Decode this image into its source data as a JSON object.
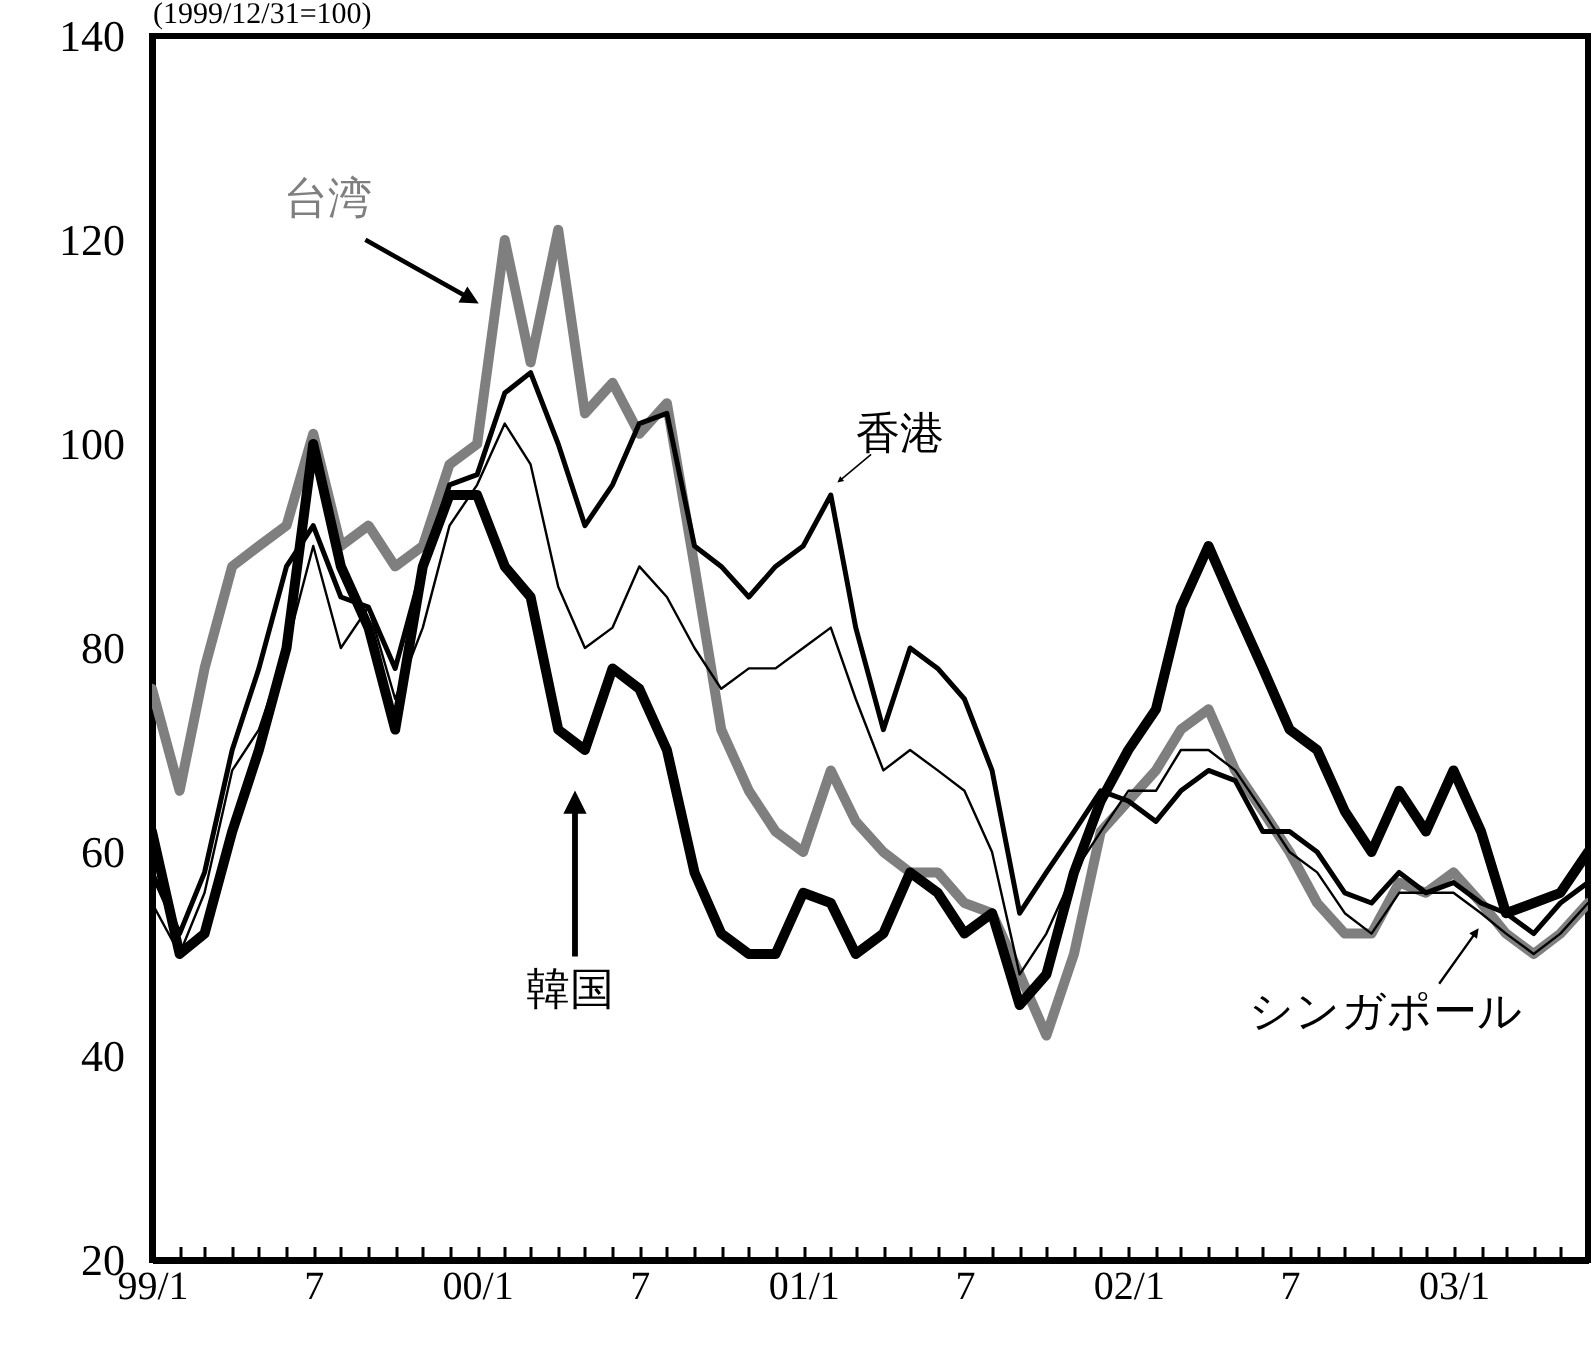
{
  "chart_data": {
    "type": "line",
    "ylabel": "(1999/12/31=100)",
    "x": [
      "1999-01",
      "1999-02",
      "1999-03",
      "1999-04",
      "1999-05",
      "1999-06",
      "1999-07",
      "1999-08",
      "1999-09",
      "1999-10",
      "1999-11",
      "1999-12",
      "2000-01",
      "2000-02",
      "2000-03",
      "2000-04",
      "2000-05",
      "2000-06",
      "2000-07",
      "2000-08",
      "2000-09",
      "2000-10",
      "2000-11",
      "2000-12",
      "2001-01",
      "2001-02",
      "2001-03",
      "2001-04",
      "2001-05",
      "2001-06",
      "2001-07",
      "2001-08",
      "2001-09",
      "2001-10",
      "2001-11",
      "2001-12",
      "2002-01",
      "2002-02",
      "2002-03",
      "2002-04",
      "2002-05",
      "2002-06",
      "2002-07",
      "2002-08",
      "2002-09",
      "2002-10",
      "2002-11",
      "2002-12",
      "2003-01",
      "2003-02",
      "2003-03",
      "2003-04",
      "2003-05",
      "2003-06"
    ],
    "series": [
      {
        "name": "台湾",
        "color": "#7f7f7f",
        "values": [
          76,
          66,
          78,
          88,
          90,
          92,
          101,
          90,
          92,
          88,
          90,
          98,
          100,
          120,
          108,
          121,
          103,
          106,
          101,
          104,
          88,
          72,
          66,
          62,
          60,
          68,
          63,
          60,
          58,
          58,
          55,
          54,
          48,
          42,
          50,
          62,
          65,
          68,
          72,
          74,
          68,
          64,
          60,
          55,
          52,
          52,
          57,
          56,
          58,
          55,
          52,
          50,
          52,
          55
        ]
      },
      {
        "name": "香港",
        "color": "#000000",
        "values": [
          58,
          52,
          58,
          70,
          78,
          88,
          92,
          85,
          84,
          78,
          88,
          96,
          97,
          105,
          107,
          100,
          92,
          96,
          102,
          103,
          90,
          88,
          85,
          88,
          90,
          95,
          82,
          72,
          80,
          78,
          75,
          68,
          54,
          58,
          62,
          66,
          65,
          63,
          66,
          68,
          67,
          62,
          62,
          60,
          56,
          55,
          58,
          56,
          57,
          55,
          54,
          52,
          55,
          57
        ]
      },
      {
        "name": "シンガポール",
        "color": "#000000",
        "values": [
          55,
          50,
          56,
          68,
          72,
          80,
          90,
          80,
          84,
          75,
          82,
          92,
          96,
          102,
          98,
          86,
          80,
          82,
          88,
          85,
          80,
          76,
          78,
          78,
          80,
          82,
          75,
          68,
          70,
          68,
          66,
          60,
          48,
          52,
          58,
          62,
          66,
          66,
          70,
          70,
          68,
          64,
          60,
          58,
          54,
          52,
          56,
          56,
          56,
          54,
          52,
          50,
          52,
          55
        ]
      },
      {
        "name": "韓国",
        "color": "#000000",
        "values": [
          62,
          50,
          52,
          62,
          70,
          80,
          100,
          88,
          82,
          72,
          88,
          95,
          95,
          88,
          85,
          72,
          70,
          78,
          76,
          70,
          58,
          52,
          50,
          50,
          56,
          55,
          50,
          52,
          58,
          56,
          52,
          54,
          45,
          48,
          58,
          65,
          70,
          74,
          84,
          90,
          84,
          78,
          72,
          70,
          64,
          60,
          66,
          62,
          68,
          62,
          54,
          55,
          56,
          60
        ]
      }
    ],
    "xlim": [
      "1999-01",
      "2003-06"
    ],
    "xticks": [
      {
        "value": "1999-01",
        "label": "99/1"
      },
      {
        "value": "1999-02",
        "label": null
      },
      {
        "value": "1999-03",
        "label": null
      },
      {
        "value": "1999-04",
        "label": null
      },
      {
        "value": "1999-05",
        "label": null
      },
      {
        "value": "1999-06",
        "label": null
      },
      {
        "value": "1999-07",
        "label": "7"
      },
      {
        "value": "1999-08",
        "label": null
      },
      {
        "value": "1999-09",
        "label": null
      },
      {
        "value": "1999-10",
        "label": null
      },
      {
        "value": "1999-11",
        "label": null
      },
      {
        "value": "1999-12",
        "label": null
      },
      {
        "value": "2000-01",
        "label": "00/1"
      },
      {
        "value": "2000-02",
        "label": null
      },
      {
        "value": "2000-03",
        "label": null
      },
      {
        "value": "2000-04",
        "label": null
      },
      {
        "value": "2000-05",
        "label": null
      },
      {
        "value": "2000-06",
        "label": null
      },
      {
        "value": "2000-07",
        "label": "7"
      },
      {
        "value": "2000-08",
        "label": null
      },
      {
        "value": "2000-09",
        "label": null
      },
      {
        "value": "2000-10",
        "label": null
      },
      {
        "value": "2000-11",
        "label": null
      },
      {
        "value": "2000-12",
        "label": null
      },
      {
        "value": "2001-01",
        "label": "01/1"
      },
      {
        "value": "2001-02",
        "label": null
      },
      {
        "value": "2001-03",
        "label": null
      },
      {
        "value": "2001-04",
        "label": null
      },
      {
        "value": "2001-05",
        "label": null
      },
      {
        "value": "2001-06",
        "label": null
      },
      {
        "value": "2001-07",
        "label": "7"
      },
      {
        "value": "2001-08",
        "label": null
      },
      {
        "value": "2001-09",
        "label": null
      },
      {
        "value": "2001-10",
        "label": null
      },
      {
        "value": "2001-11",
        "label": null
      },
      {
        "value": "2001-12",
        "label": null
      },
      {
        "value": "2002-01",
        "label": "02/1"
      },
      {
        "value": "2002-02",
        "label": null
      },
      {
        "value": "2002-03",
        "label": null
      },
      {
        "value": "2002-04",
        "label": null
      },
      {
        "value": "2002-05",
        "label": null
      },
      {
        "value": "2002-06",
        "label": null
      },
      {
        "value": "2002-07",
        "label": "7"
      },
      {
        "value": "2002-08",
        "label": null
      },
      {
        "value": "2002-09",
        "label": null
      },
      {
        "value": "2002-10",
        "label": null
      },
      {
        "value": "2002-11",
        "label": null
      },
      {
        "value": "2002-12",
        "label": null
      },
      {
        "value": "2003-01",
        "label": "03/1"
      },
      {
        "value": "2003-02",
        "label": null
      },
      {
        "value": "2003-03",
        "label": null
      },
      {
        "value": "2003-04",
        "label": null
      },
      {
        "value": "2003-05",
        "label": null
      }
    ],
    "ylim": [
      20,
      140
    ],
    "yticks": [
      20,
      40,
      60,
      80,
      100,
      120,
      140
    ]
  }
}
